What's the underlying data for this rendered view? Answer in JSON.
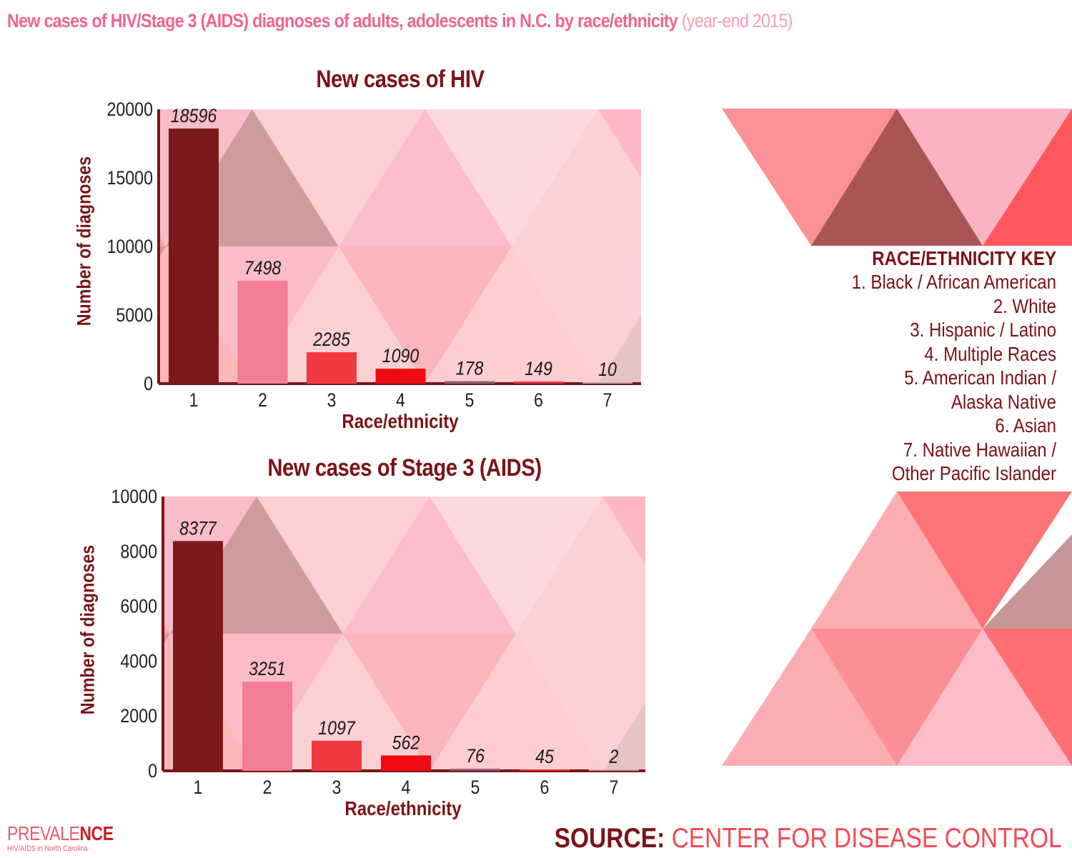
{
  "header": {
    "title": "New cases of HIV/Stage 3 (AIDS) diagnoses of adults, adolescents in N.C. by race/ethnicity",
    "subtitle": "(year-end 2015)"
  },
  "chart_data": [
    {
      "type": "bar",
      "title": "New cases of HIV",
      "xlabel": "Race/ethnicity",
      "ylabel": "Number of diagnoses",
      "categories": [
        "1",
        "2",
        "3",
        "4",
        "5",
        "6",
        "7"
      ],
      "values": [
        18596,
        7498,
        2285,
        1090,
        178,
        149,
        10
      ],
      "labels": [
        "18596",
        "7498",
        "2285",
        "1090",
        "178",
        "149",
        "10"
      ],
      "ylim": [
        0,
        20000
      ],
      "yticks": [
        0,
        5000,
        10000,
        15000,
        20000
      ],
      "bar_colors": [
        "#7b1a1c",
        "#f47c95",
        "#f03a3f",
        "#f00b12",
        "#8a6070",
        "#e03036",
        "#c4a0a8"
      ],
      "grid": false
    },
    {
      "type": "bar",
      "title": "New cases of Stage 3 (AIDS)",
      "xlabel": "Race/ethnicity",
      "ylabel": "Number of diagnoses",
      "categories": [
        "1",
        "2",
        "3",
        "4",
        "5",
        "6",
        "7"
      ],
      "values": [
        8377,
        3251,
        1097,
        562,
        76,
        45,
        2
      ],
      "labels": [
        "8377",
        "3251",
        "1097",
        "562",
        "76",
        "45",
        "2"
      ],
      "ylim": [
        0,
        10000
      ],
      "yticks": [
        0,
        2000,
        4000,
        6000,
        8000,
        10000
      ],
      "bar_colors": [
        "#7b1a1c",
        "#f47c95",
        "#f03a3f",
        "#f00b12",
        "#8a6070",
        "#e03036",
        "#c4a0a8"
      ],
      "grid": false
    }
  ],
  "key": {
    "title": "RACE/ETHNICITY KEY",
    "items": [
      "1. Black / African American",
      "2. White",
      "3. Hispanic / Latino",
      "4. Multiple Races",
      "5. American Indian /",
      "Alaska Native",
      "6. Asian",
      "7. Native Hawaiian /",
      "Other Pacific Islander"
    ]
  },
  "source": {
    "label": "SOURCE:",
    "text": "CENTER FOR DISEASE CONTROL"
  },
  "brand": {
    "name_a": "PREVALE",
    "name_b": "NCE",
    "tagline": "HIV/AIDS in North Carolina"
  },
  "colors": {
    "title_pink": "#f0668a",
    "dark_red": "#7a1318",
    "source_red": "#f04c55"
  }
}
